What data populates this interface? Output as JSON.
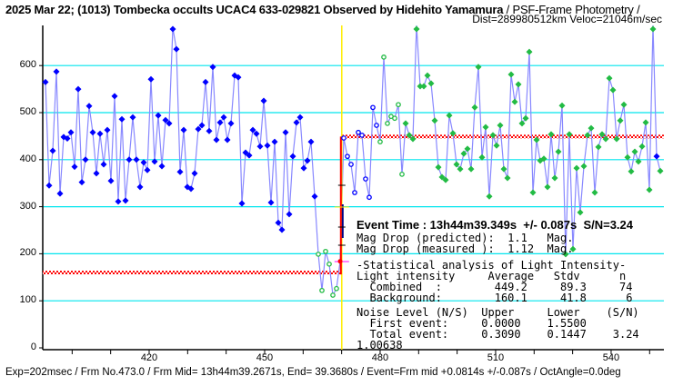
{
  "header": {
    "title_bold": "2025 Mar 22; (1013) Tombecka occults UCAC4 633-029821 Observed by Hidehito Yamamura",
    "title_rest": " / PSF-Frame Photometry /",
    "dist_line": "Dist=289980512km Veloc=21046m/sec"
  },
  "info": {
    "event_time": "Event Time : 13h44m39.349s  +/- 0.087s  S/N=3.24",
    "lines": [
      "Mag Drop (predicted):  1.1   Mag.",
      "Mag Drop (measured ):  1.12  Mag.",
      "-Statistical analysis of Light Intensity-",
      "Light intensity     Average   Stdv      n",
      "  Combined  :        449.2     89.3     74",
      "  Background:        160.1     41.8      6",
      "Noise Level (N/S)  Upper     Lower    (S/N)",
      "  First event:     0.0000    1.5500",
      "  Total event:     0.3090    0.1447    3.24",
      "1.00638"
    ]
  },
  "footer": "Exp=202msec / Frm No.473.0 / Frm Mid= 13h44m39.2671s,  End= 39.3680s / Event=Frm mid +0.0814s +/-0.087s / OctAngle=0.0deg",
  "colors": {
    "blue": "#0000ff",
    "green": "#22bb44",
    "line": "#8888ff",
    "grid": "#00e5ee",
    "red": "#ff0000",
    "event": "#ffee00"
  },
  "chart_data": {
    "type": "line",
    "xlabel": "",
    "ylabel": "",
    "x_ticks": [
      420,
      450,
      480,
      510,
      540
    ],
    "x_minor_step": 10,
    "xlim": [
      392.4,
      553.7
    ],
    "y_ticks": [
      0,
      100,
      200,
      300,
      400,
      500,
      600
    ],
    "ylim": [
      0,
      690
    ],
    "grid": "horizontal",
    "event_frame": 469.8,
    "levels": {
      "background": 160.1,
      "combined": 449.2
    },
    "values": [
      565,
      345,
      419,
      587,
      328,
      448,
      445,
      458,
      385,
      550,
      352,
      400,
      514,
      458,
      371,
      455,
      390,
      463,
      355,
      535,
      311,
      486,
      313,
      400,
      490,
      400,
      342,
      394,
      378,
      571,
      396,
      494,
      386,
      484,
      477,
      680,
      635,
      374,
      463,
      342,
      338,
      371,
      465,
      473,
      565,
      461,
      597,
      442,
      479,
      490,
      442,
      477,
      579,
      575,
      307,
      415,
      409,
      463,
      455,
      428,
      525,
      430,
      309,
      438,
      266,
      251,
      458,
      284,
      407,
      479,
      490,
      382,
      398,
      438,
      322,
      199,
      122,
      205,
      178,
      112,
      126,
      184,
      446,
      407,
      390,
      330,
      458,
      452,
      359,
      320,
      511,
      473,
      438,
      618,
      477,
      492,
      488,
      517,
      369,
      477,
      452,
      444,
      691,
      556,
      556,
      579,
      562,
      483,
      384,
      363,
      357,
      494,
      456,
      390,
      380,
      413,
      423,
      380,
      511,
      597,
      405,
      469,
      322,
      452,
      430,
      473,
      380,
      361,
      581,
      523,
      560,
      477,
      488,
      629,
      330,
      442,
      398,
      402,
      342,
      454,
      361,
      417,
      515,
      199,
      454,
      210,
      382,
      288,
      386,
      452,
      467,
      330,
      427,
      454,
      444,
      573,
      548,
      444,
      483,
      517,
      405,
      375,
      417,
      396,
      428,
      479,
      336,
      690,
      407,
      376
    ],
    "kinds": "bbbbbbbbbbbbbbbbbbbbbbbbbbbbbbbbbbbbbbbbbbbbbbbbbbbbbbbbbbbbbbbbbbbbbbbbbbbOOOOOORooooooooooOOOOOOOgggggggggggggggggggggggggggggggggggggggggggggggggggggggggggggggggggggbgbb"
  }
}
